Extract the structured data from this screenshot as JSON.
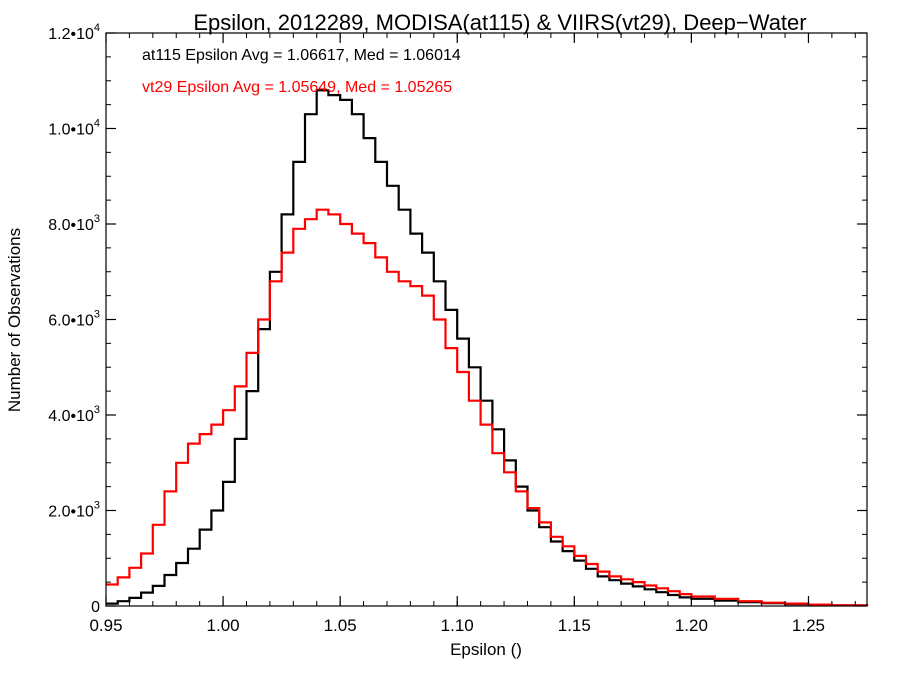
{
  "chart_data": {
    "type": "line",
    "title": "Epsilon, 2012289, MODISA(at115) & VIIRS(vt29), Deep−Water",
    "xlabel": "Epsilon ()",
    "ylabel": "Number of Observations",
    "xlim": [
      0.95,
      1.275
    ],
    "ylim": [
      0,
      12000
    ],
    "x_ticks": [
      {
        "value": 0.95,
        "label": "0.95"
      },
      {
        "value": 1.0,
        "label": "1.00"
      },
      {
        "value": 1.05,
        "label": "1.05"
      },
      {
        "value": 1.1,
        "label": "1.10"
      },
      {
        "value": 1.15,
        "label": "1.15"
      },
      {
        "value": 1.2,
        "label": "1.20"
      },
      {
        "value": 1.25,
        "label": "1.25"
      }
    ],
    "y_ticks": [
      {
        "value": 0,
        "mantissa": "0",
        "exp": ""
      },
      {
        "value": 2000,
        "mantissa": "2.0•",
        "exp": "3"
      },
      {
        "value": 4000,
        "mantissa": "4.0•",
        "exp": "3"
      },
      {
        "value": 6000,
        "mantissa": "6.0•",
        "exp": "3"
      },
      {
        "value": 8000,
        "mantissa": "8.0•",
        "exp": "3"
      },
      {
        "value": 10000,
        "mantissa": "1.0•",
        "exp": "4"
      },
      {
        "value": 12000,
        "mantissa": "1.2•",
        "exp": "4"
      }
    ],
    "grid": false,
    "annotations": [
      {
        "text": "at115 Epsilon Avg = 1.06617, Med = 1.06014",
        "color": "#000000"
      },
      {
        "text": "vt29 Epsilon Avg = 1.05649, Med = 1.05265",
        "color": "#ff0000"
      }
    ],
    "series": [
      {
        "color": "#000000",
        "x": [
          0.95,
          0.955,
          0.96,
          0.965,
          0.97,
          0.975,
          0.98,
          0.985,
          0.99,
          0.995,
          1.0,
          1.005,
          1.01,
          1.015,
          1.02,
          1.025,
          1.03,
          1.035,
          1.04,
          1.045,
          1.05,
          1.055,
          1.06,
          1.065,
          1.07,
          1.075,
          1.08,
          1.085,
          1.09,
          1.095,
          1.1,
          1.105,
          1.11,
          1.115,
          1.12,
          1.125,
          1.13,
          1.135,
          1.14,
          1.145,
          1.15,
          1.155,
          1.16,
          1.165,
          1.17,
          1.175,
          1.18,
          1.185,
          1.19,
          1.195,
          1.2,
          1.21,
          1.22,
          1.23,
          1.24,
          1.25,
          1.26,
          1.275
        ],
        "y": [
          50,
          100,
          170,
          280,
          420,
          650,
          900,
          1200,
          1600,
          2000,
          2600,
          3500,
          4500,
          5800,
          7000,
          8200,
          9300,
          10300,
          10800,
          10700,
          10600,
          10300,
          9800,
          9300,
          8800,
          8300,
          7800,
          7400,
          6800,
          6200,
          5600,
          5000,
          4300,
          3700,
          3050,
          2500,
          2000,
          1650,
          1350,
          1150,
          950,
          780,
          620,
          540,
          470,
          410,
          350,
          290,
          230,
          180,
          150,
          110,
          80,
          60,
          40,
          20,
          12,
          0
        ]
      },
      {
        "color": "#ff0000",
        "x": [
          0.95,
          0.955,
          0.96,
          0.965,
          0.97,
          0.975,
          0.98,
          0.985,
          0.99,
          0.995,
          1.0,
          1.005,
          1.01,
          1.015,
          1.02,
          1.025,
          1.03,
          1.035,
          1.04,
          1.045,
          1.05,
          1.055,
          1.06,
          1.065,
          1.07,
          1.075,
          1.08,
          1.085,
          1.09,
          1.095,
          1.1,
          1.105,
          1.11,
          1.115,
          1.12,
          1.125,
          1.13,
          1.135,
          1.14,
          1.145,
          1.15,
          1.155,
          1.16,
          1.165,
          1.17,
          1.175,
          1.18,
          1.185,
          1.19,
          1.195,
          1.2,
          1.21,
          1.22,
          1.23,
          1.24,
          1.25,
          1.26,
          1.275
        ],
        "y": [
          450,
          600,
          800,
          1100,
          1700,
          2400,
          3000,
          3400,
          3600,
          3800,
          4100,
          4600,
          5300,
          6000,
          6800,
          7400,
          7900,
          8100,
          8300,
          8200,
          8000,
          7800,
          7600,
          7300,
          7000,
          6800,
          6700,
          6500,
          6000,
          5400,
          4900,
          4300,
          3800,
          3200,
          2800,
          2400,
          2050,
          1750,
          1450,
          1250,
          1050,
          880,
          720,
          620,
          560,
          500,
          430,
          370,
          310,
          250,
          200,
          150,
          100,
          70,
          50,
          30,
          15,
          0
        ]
      }
    ]
  }
}
